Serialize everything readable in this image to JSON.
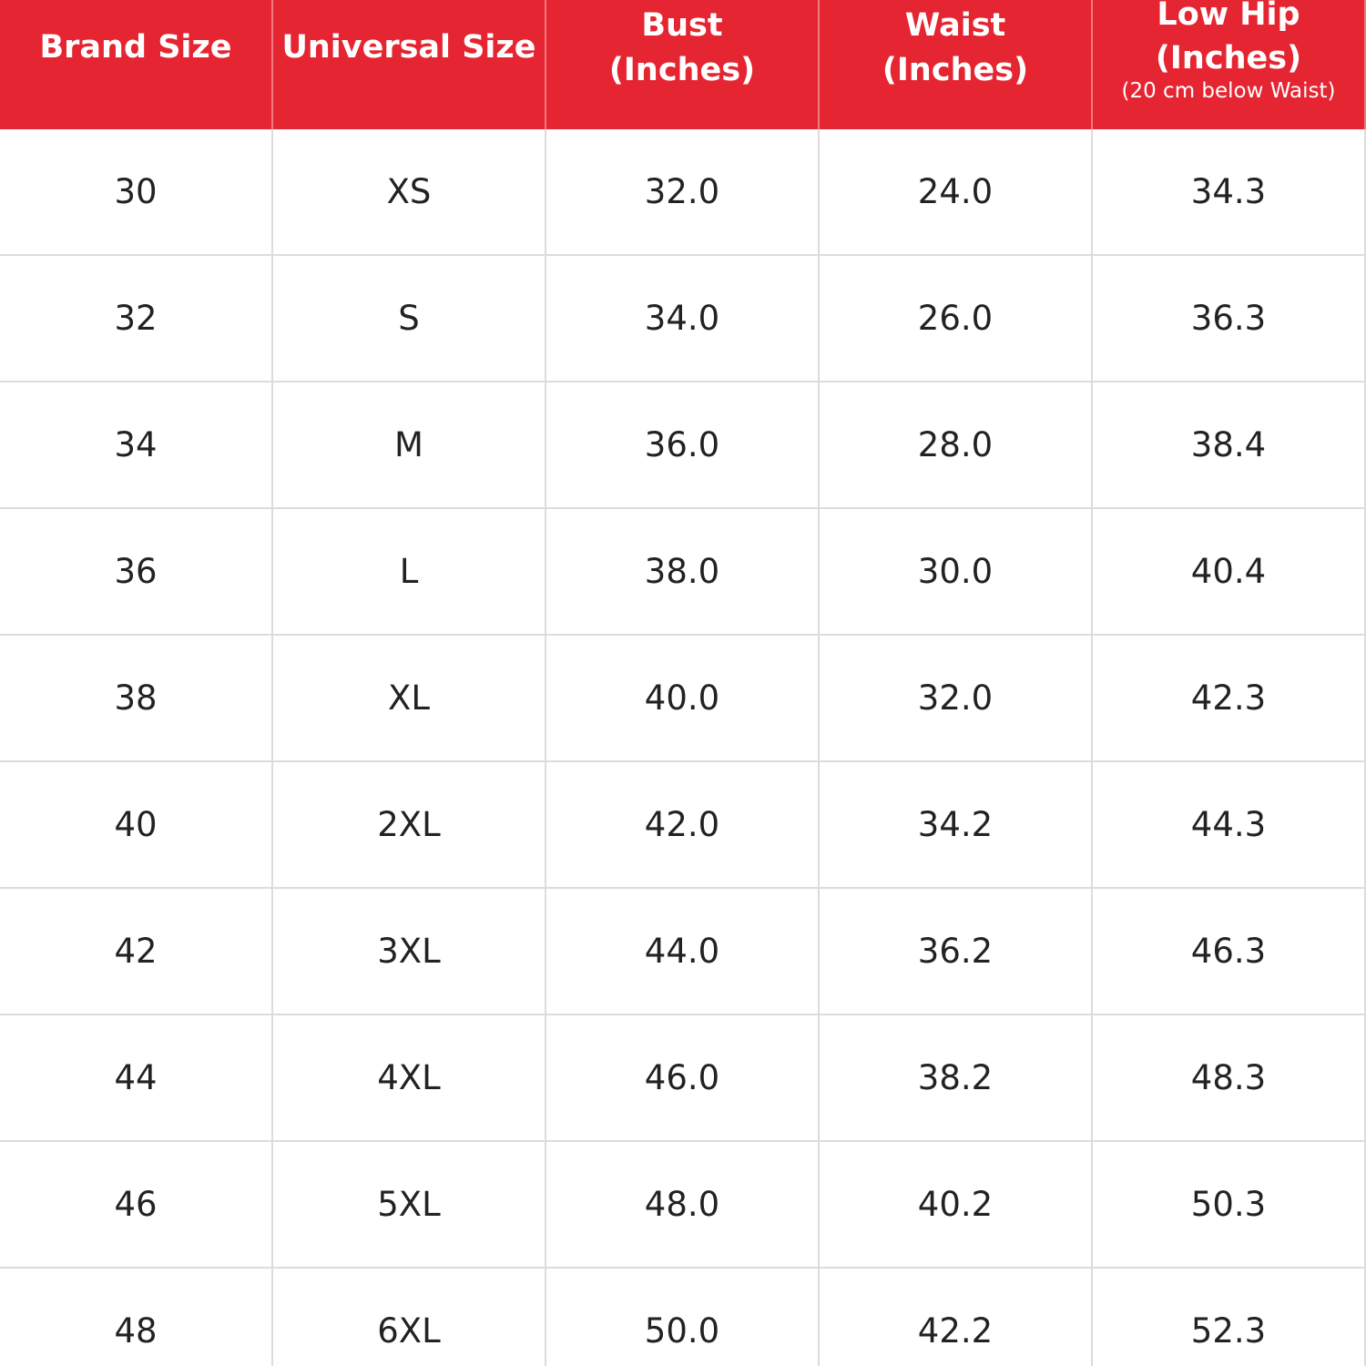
{
  "table": {
    "header": [
      [
        "Brand Size"
      ],
      [
        "Universal Size"
      ],
      [
        "Bust",
        "(Inches)"
      ],
      [
        "Waist",
        "(Inches)"
      ],
      [
        "Low Hip",
        "(Inches)"
      ]
    ],
    "header_note": "(20 cm below Waist)",
    "rows": [
      [
        "30",
        "XS",
        "32.0",
        "24.0",
        "34.3"
      ],
      [
        "32",
        "S",
        "34.0",
        "26.0",
        "36.3"
      ],
      [
        "34",
        "M",
        "36.0",
        "28.0",
        "38.4"
      ],
      [
        "36",
        "L",
        "38.0",
        "30.0",
        "40.4"
      ],
      [
        "38",
        "XL",
        "40.0",
        "32.0",
        "42.3"
      ],
      [
        "40",
        "2XL",
        "42.0",
        "34.2",
        "44.3"
      ],
      [
        "42",
        "3XL",
        "44.0",
        "36.2",
        "46.3"
      ],
      [
        "44",
        "4XL",
        "46.0",
        "38.2",
        "48.3"
      ],
      [
        "46",
        "5XL",
        "48.0",
        "40.2",
        "50.3"
      ],
      [
        "48",
        "6XL",
        "50.0",
        "42.2",
        "52.3"
      ]
    ]
  }
}
